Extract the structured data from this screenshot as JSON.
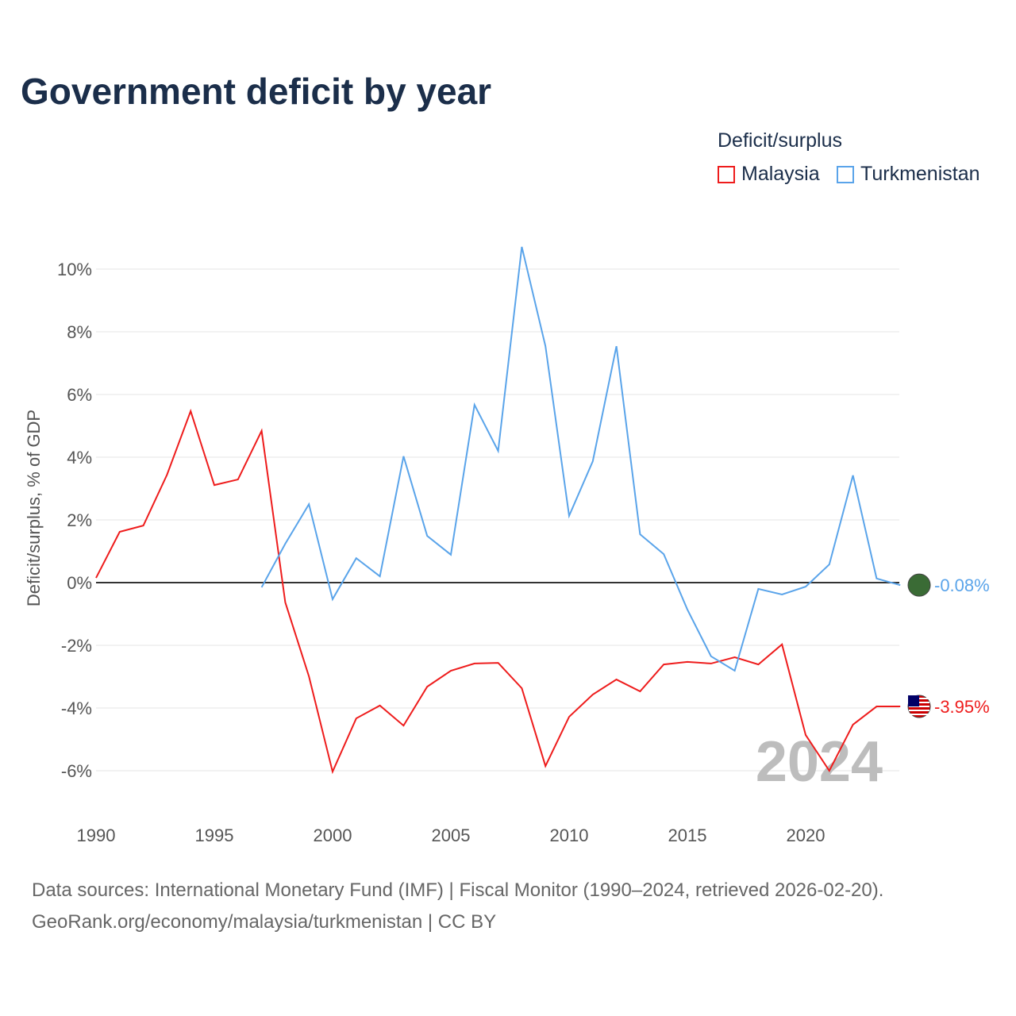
{
  "chart_data": {
    "type": "line",
    "title": "Government deficit by year",
    "ylabel": "Deficit/surplus, % of GDP",
    "xlabel": "",
    "ylim": [
      -7,
      11
    ],
    "xlim": [
      1990,
      2024
    ],
    "yticks": [
      -6,
      -4,
      -2,
      0,
      2,
      4,
      6,
      8,
      10
    ],
    "ytick_labels": [
      "-6%",
      "-4%",
      "-2%",
      "0%",
      "2%",
      "4%",
      "6%",
      "8%",
      "10%"
    ],
    "xticks": [
      1990,
      1995,
      2000,
      2005,
      2010,
      2015,
      2020
    ],
    "xtick_labels": [
      "1990",
      "1995",
      "2000",
      "2005",
      "2010",
      "2015",
      "2020"
    ],
    "legend_title": "Deficit/surplus",
    "legend_position": "top-right",
    "year_watermark": "2024",
    "series": [
      {
        "name": "Malaysia",
        "color": "#ee1c1c",
        "end_label": "-3.95%",
        "x": [
          1990,
          1991,
          1992,
          1993,
          1994,
          1995,
          1996,
          1997,
          1998,
          1999,
          2000,
          2001,
          2002,
          2003,
          2004,
          2005,
          2006,
          2007,
          2008,
          2009,
          2010,
          2011,
          2012,
          2013,
          2014,
          2015,
          2016,
          2017,
          2018,
          2019,
          2020,
          2021,
          2022,
          2023,
          2024
        ],
        "values": [
          0.15,
          1.62,
          1.82,
          3.44,
          5.47,
          3.11,
          3.29,
          4.84,
          -0.63,
          -2.99,
          -6.03,
          -4.33,
          -3.92,
          -4.56,
          -3.32,
          -2.81,
          -2.58,
          -2.56,
          -3.37,
          -5.85,
          -4.28,
          -3.57,
          -3.09,
          -3.47,
          -2.61,
          -2.53,
          -2.58,
          -2.38,
          -2.61,
          -1.97,
          -4.86,
          -6.0,
          -4.53,
          -3.95,
          -3.95
        ]
      },
      {
        "name": "Turkmenistan",
        "color": "#5aa4ea",
        "end_label": "-0.08%",
        "x": [
          1997,
          1998,
          1999,
          2000,
          2001,
          2002,
          2003,
          2004,
          2005,
          2006,
          2007,
          2008,
          2009,
          2010,
          2011,
          2012,
          2013,
          2014,
          2015,
          2016,
          2017,
          2018,
          2019,
          2020,
          2021,
          2022,
          2023,
          2024
        ],
        "values": [
          -0.15,
          1.24,
          2.5,
          -0.53,
          0.78,
          0.2,
          4.03,
          1.49,
          0.89,
          5.67,
          4.2,
          10.71,
          7.54,
          2.13,
          3.87,
          7.54,
          1.54,
          0.91,
          -0.86,
          -2.35,
          -2.81,
          -0.2,
          -0.38,
          -0.13,
          0.58,
          3.42,
          0.13,
          -0.08
        ]
      }
    ]
  },
  "footer": {
    "line1": "Data sources: International Monetary Fund (IMF) | Fiscal Monitor (1990–2024, retrieved 2026-02-20).",
    "line2": "GeoRank.org/economy/malaysia/turkmenistan | CC BY"
  }
}
